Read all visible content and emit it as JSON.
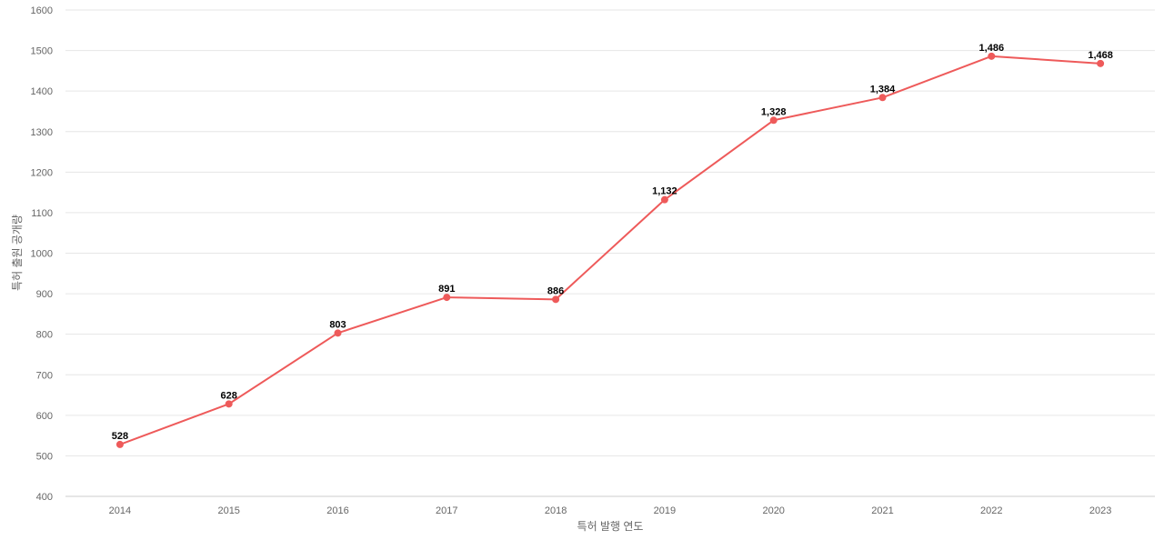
{
  "chart_data": {
    "type": "line",
    "title": "",
    "xlabel": "특허 발행 연도",
    "ylabel": "특허 출원 공개량",
    "categories": [
      "2014",
      "2015",
      "2016",
      "2017",
      "2018",
      "2019",
      "2020",
      "2021",
      "2022",
      "2023"
    ],
    "values": [
      528,
      628,
      803,
      891,
      886,
      1132,
      1328,
      1384,
      1486,
      1468
    ],
    "data_labels": [
      "528",
      "628",
      "803",
      "891",
      "886",
      "1,132",
      "1,328",
      "1,384",
      "1,486",
      "1,468"
    ],
    "ylim": [
      400,
      1600
    ],
    "y_ticks": [
      400,
      500,
      600,
      700,
      800,
      900,
      1000,
      1100,
      1200,
      1300,
      1400,
      1500,
      1600
    ],
    "grid": true,
    "legend": "none",
    "colors": {
      "series": "#ee5a5a"
    }
  }
}
